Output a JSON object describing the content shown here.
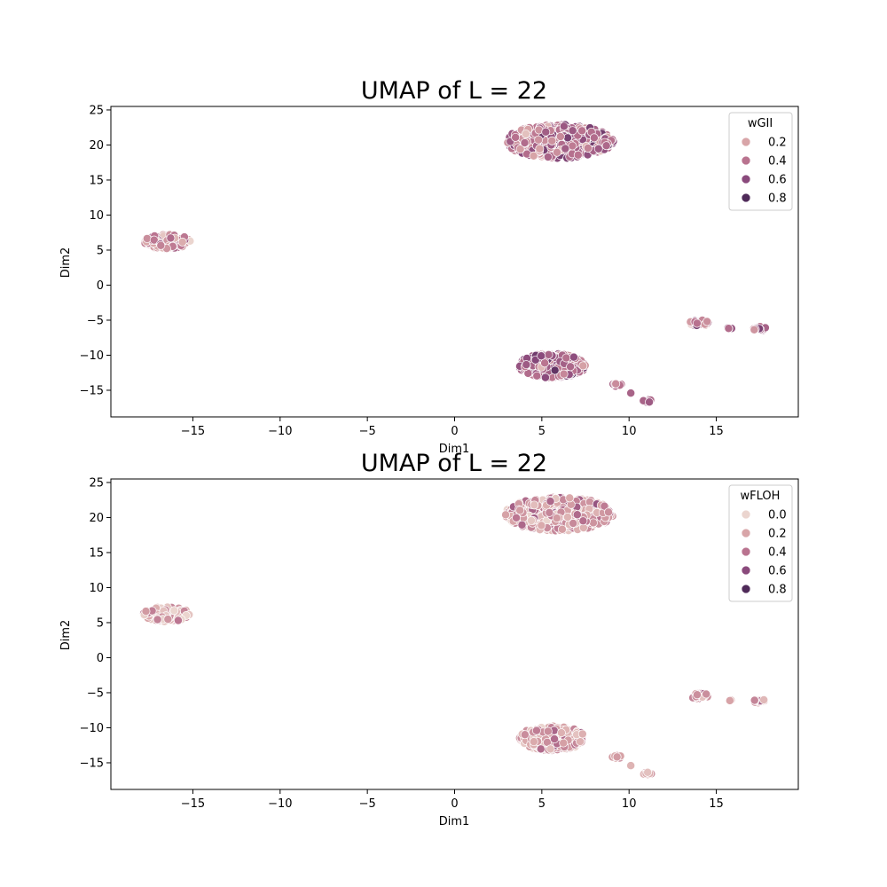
{
  "chart_data": [
    {
      "type": "scatter",
      "title": "UMAP of L = 22",
      "xlabel": "Dim1",
      "ylabel": "Dim2",
      "xlim": [
        -19.7,
        19.7
      ],
      "ylim": [
        -18.8,
        25.5
      ],
      "xticks": [
        -15,
        -10,
        -5,
        0,
        5,
        10,
        15
      ],
      "yticks": [
        -15,
        -10,
        -5,
        0,
        5,
        10,
        15,
        20,
        25
      ],
      "grid": false,
      "legend": {
        "title": "wGII",
        "placement": "top-right",
        "entries": [
          {
            "label": "0.2",
            "color": "#d8a5a8"
          },
          {
            "label": "0.4",
            "color": "#b9738f"
          },
          {
            "label": "0.6",
            "color": "#8a4a7c"
          },
          {
            "label": "0.8",
            "color": "#4f2a59"
          }
        ]
      },
      "color_range": [
        0.0,
        1.0
      ],
      "clusters": [
        {
          "cx": 6.0,
          "cy": 20.5,
          "rx": 3.1,
          "ry": 2.4,
          "n": 520,
          "value_mean": 0.55,
          "value_sd": 0.2
        },
        {
          "cx": -16.5,
          "cy": 6.2,
          "rx": 1.35,
          "ry": 1.05,
          "n": 140,
          "value_mean": 0.42,
          "value_sd": 0.2
        },
        {
          "cx": 5.6,
          "cy": -11.5,
          "rx": 1.9,
          "ry": 1.75,
          "n": 420,
          "value_mean": 0.62,
          "value_sd": 0.17
        },
        {
          "cx": 14.0,
          "cy": -5.4,
          "rx": 0.55,
          "ry": 0.45,
          "n": 24,
          "value_mean": 0.55,
          "value_sd": 0.2
        },
        {
          "cx": 15.8,
          "cy": -6.1,
          "rx": 0.2,
          "ry": 0.15,
          "n": 4,
          "value_mean": 0.6,
          "value_sd": 0.1
        },
        {
          "cx": 17.5,
          "cy": -6.2,
          "rx": 0.45,
          "ry": 0.3,
          "n": 16,
          "value_mean": 0.55,
          "value_sd": 0.2
        },
        {
          "cx": 9.3,
          "cy": -14.2,
          "rx": 0.3,
          "ry": 0.25,
          "n": 9,
          "value_mean": 0.6,
          "value_sd": 0.15
        },
        {
          "cx": 10.1,
          "cy": -15.4,
          "rx": 0.05,
          "ry": 0.05,
          "n": 1,
          "value_mean": 0.6,
          "value_sd": 0.05
        },
        {
          "cx": 11.0,
          "cy": -16.5,
          "rx": 0.35,
          "ry": 0.2,
          "n": 10,
          "value_mean": 0.6,
          "value_sd": 0.15
        }
      ]
    },
    {
      "type": "scatter",
      "title": "UMAP of L = 22",
      "xlabel": "Dim1",
      "ylabel": "Dim2",
      "xlim": [
        -19.7,
        19.7
      ],
      "ylim": [
        -18.8,
        25.5
      ],
      "xticks": [
        -15,
        -10,
        -5,
        0,
        5,
        10,
        15
      ],
      "yticks": [
        -15,
        -10,
        -5,
        0,
        5,
        10,
        15,
        20,
        25
      ],
      "grid": false,
      "legend": {
        "title": "wFLOH",
        "placement": "top-right",
        "entries": [
          {
            "label": "0.0",
            "color": "#ebd5cf"
          },
          {
            "label": "0.2",
            "color": "#d8a5a8"
          },
          {
            "label": "0.4",
            "color": "#b9738f"
          },
          {
            "label": "0.6",
            "color": "#8a4a7c"
          },
          {
            "label": "0.8",
            "color": "#4f2a59"
          }
        ]
      },
      "color_range": [
        0.0,
        1.0
      ],
      "clusters": [
        {
          "cx": 6.0,
          "cy": 20.5,
          "rx": 3.1,
          "ry": 2.4,
          "n": 520,
          "value_mean": 0.3,
          "value_sd": 0.18
        },
        {
          "cx": -16.5,
          "cy": 6.2,
          "rx": 1.35,
          "ry": 1.05,
          "n": 140,
          "value_mean": 0.22,
          "value_sd": 0.15
        },
        {
          "cx": 5.6,
          "cy": -11.5,
          "rx": 1.9,
          "ry": 1.75,
          "n": 420,
          "value_mean": 0.28,
          "value_sd": 0.18
        },
        {
          "cx": 14.0,
          "cy": -5.4,
          "rx": 0.55,
          "ry": 0.45,
          "n": 24,
          "value_mean": 0.3,
          "value_sd": 0.15
        },
        {
          "cx": 15.8,
          "cy": -6.1,
          "rx": 0.2,
          "ry": 0.15,
          "n": 4,
          "value_mean": 0.25,
          "value_sd": 0.1
        },
        {
          "cx": 17.5,
          "cy": -6.2,
          "rx": 0.45,
          "ry": 0.3,
          "n": 16,
          "value_mean": 0.25,
          "value_sd": 0.15
        },
        {
          "cx": 9.3,
          "cy": -14.2,
          "rx": 0.3,
          "ry": 0.25,
          "n": 9,
          "value_mean": 0.35,
          "value_sd": 0.15
        },
        {
          "cx": 10.1,
          "cy": -15.4,
          "rx": 0.05,
          "ry": 0.05,
          "n": 1,
          "value_mean": 0.1,
          "value_sd": 0.05
        },
        {
          "cx": 11.0,
          "cy": -16.5,
          "rx": 0.35,
          "ry": 0.2,
          "n": 10,
          "value_mean": 0.2,
          "value_sd": 0.15
        }
      ]
    }
  ]
}
